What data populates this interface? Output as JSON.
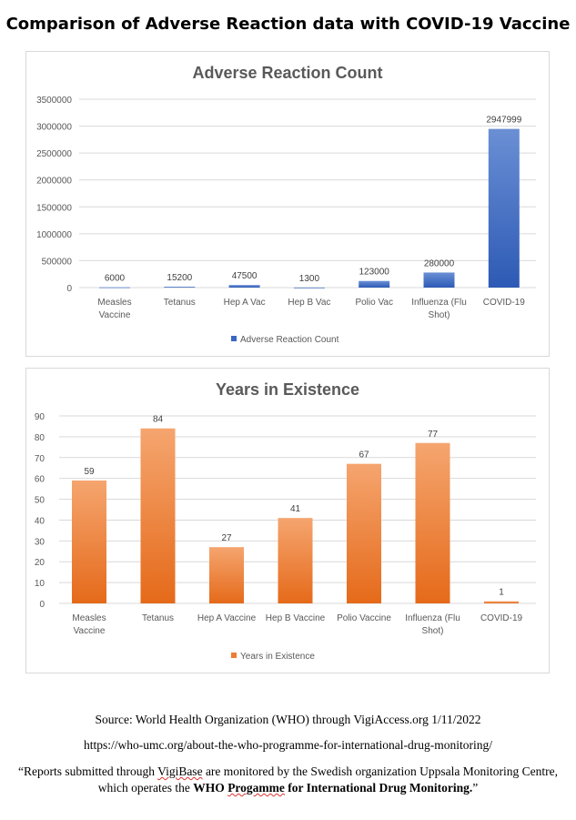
{
  "page_title": "Comparison of Adverse Reaction data with COVID-19 Vaccine",
  "chart_data": [
    {
      "type": "bar",
      "title": "Adverse Reaction Count",
      "categories": [
        [
          "Measles",
          "Vaccine"
        ],
        [
          "Tetanus"
        ],
        [
          "Hep A Vac"
        ],
        [
          "Hep B Vac"
        ],
        [
          "Polio Vac"
        ],
        [
          "Influenza (Flu",
          "Shot)"
        ],
        [
          "COVID-19"
        ]
      ],
      "series": [
        {
          "name": "Adverse Reaction Count",
          "values": [
            6000,
            15200,
            47500,
            1300,
            123000,
            280000,
            2947999
          ]
        }
      ],
      "ylim": [
        0,
        3500000
      ],
      "yticks": [
        0,
        500000,
        1000000,
        1500000,
        2000000,
        2500000,
        3000000,
        3500000
      ],
      "xlabel": "",
      "ylabel": "",
      "grid": true,
      "legend": "bottom",
      "color": "#3a67c0"
    },
    {
      "type": "bar",
      "title": "Years in Existence",
      "categories": [
        [
          "Measles",
          "Vaccine"
        ],
        [
          "Tetanus"
        ],
        [
          "Hep A Vaccine"
        ],
        [
          "Hep B Vaccine"
        ],
        [
          "Polio Vaccine"
        ],
        [
          "Influenza (Flu",
          "Shot)"
        ],
        [
          "COVID-19"
        ]
      ],
      "series": [
        {
          "name": "Years in Existence",
          "values": [
            59,
            84,
            27,
            41,
            67,
            77,
            1
          ]
        }
      ],
      "ylim": [
        0,
        90
      ],
      "yticks": [
        0,
        10,
        20,
        30,
        40,
        50,
        60,
        70,
        80,
        90
      ],
      "xlabel": "",
      "ylabel": "",
      "grid": true,
      "legend": "bottom",
      "color": "#ed7d31"
    }
  ],
  "footer": {
    "source": "Source: World Health Organization (WHO) through VigiAccess.org 1/11/2022",
    "url": "https://who-umc.org/about-the-who-programme-for-international-drug-monitoring/",
    "quote_part1": "“Reports submitted through ",
    "quote_vigibase": "VigiBase",
    "quote_part2": " are monitored by the Swedish organization Uppsala Monitoring Centre,",
    "quote_line2_start": "which operates the ",
    "quote_bold_who": "WHO ",
    "quote_bold_progamme": "Progamme",
    "quote_bold_rest": " for International Drug Monitoring.",
    "quote_end": "”"
  }
}
